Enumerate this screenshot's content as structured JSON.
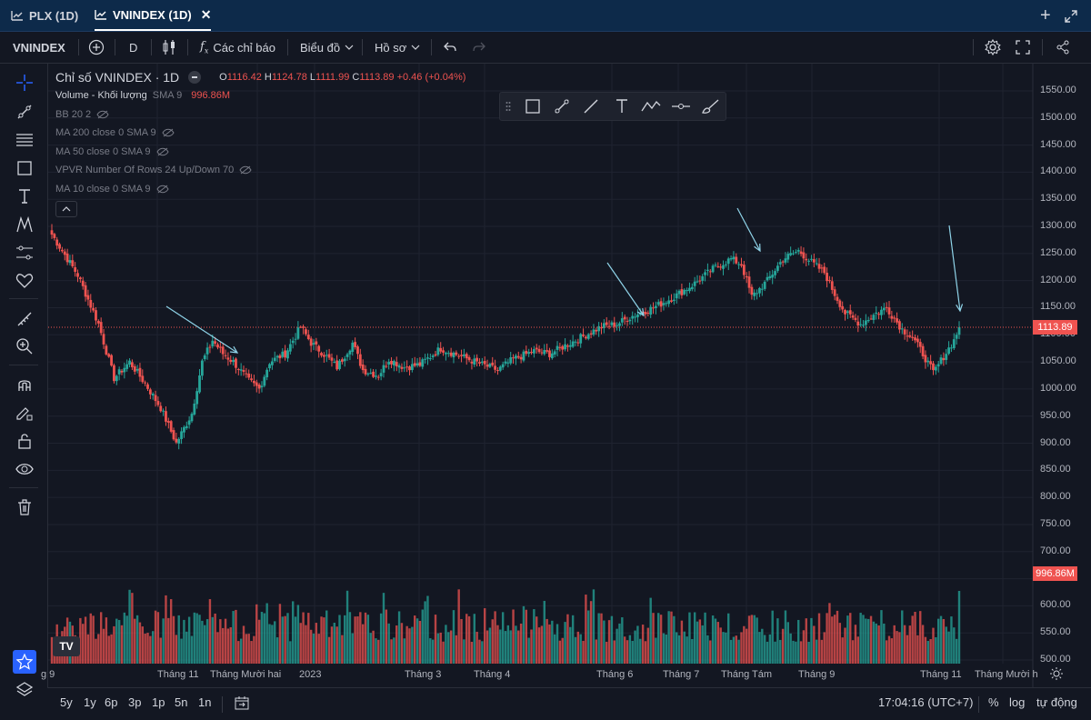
{
  "tabs": [
    {
      "label": "PLX (1D)",
      "active": false
    },
    {
      "label": "VNINDEX (1D)",
      "active": true
    }
  ],
  "toolbar": {
    "symbol": "VNINDEX",
    "interval": "D",
    "indicators_label": "Các chỉ báo",
    "chart_type_label": "Biểu đồ",
    "profile_label": "Hồ sơ"
  },
  "legend": {
    "title": "Chỉ số VNINDEX · 1D",
    "o_label": "O",
    "o": "1116.42",
    "h_label": "H",
    "h": "1124.78",
    "l_label": "L",
    "l": "1111.99",
    "c_label": "C",
    "c": "1113.89",
    "change": "+0.46 (+0.04%)",
    "volume_label": "Volume - Khối lượng",
    "volume_sma": "SMA 9",
    "volume_value": "996.86M",
    "indicators": [
      "BB 20 2",
      "MA 200 close 0 SMA 9",
      "MA 50 close 0 SMA 9",
      "VPVR Number Of Rows 24 Up/Down 70",
      "MA 10 close 0 SMA 9"
    ]
  },
  "price_axis": {
    "ticks": [
      "1550.00",
      "1500.00",
      "1450.00",
      "1400.00",
      "1350.00",
      "1300.00",
      "1250.00",
      "1200.00",
      "1150.00",
      "1100.00",
      "1050.00",
      "1000.00",
      "950.00",
      "900.00",
      "850.00",
      "800.00",
      "750.00",
      "700.00",
      "650.00",
      "600.00",
      "550.00",
      "500.00"
    ],
    "current_price": "1113.89",
    "current_volume": "996.86M"
  },
  "time_axis": {
    "labels": [
      "g 9",
      "Tháng 11",
      "Tháng Mười hai",
      "2023",
      "Tháng 3",
      "Tháng 4",
      "Tháng 6",
      "Tháng 7",
      "Tháng Tám",
      "Tháng 9",
      "Tháng 11",
      "Tháng Mười h"
    ]
  },
  "bottom": {
    "ranges": [
      "5y",
      "1y",
      "6p",
      "3p",
      "1p",
      "5n",
      "1n"
    ],
    "clock": "17:04:16 (UTC+7)",
    "pct": "%",
    "log": "log",
    "auto": "tự động"
  },
  "watermark": "TV",
  "colors": {
    "up": "#26a69a",
    "down": "#ef5350",
    "accent": "#2962ff",
    "bg": "#131722",
    "arrow": "#8fd3e8"
  },
  "chart_data": {
    "type": "candlestick",
    "ylim": [
      500,
      1550
    ],
    "anchors": [
      [
        0,
        1285
      ],
      [
        10,
        1210
      ],
      [
        18,
        1120
      ],
      [
        24,
        1020
      ],
      [
        30,
        1050
      ],
      [
        36,
        1010
      ],
      [
        42,
        965
      ],
      [
        48,
        900
      ],
      [
        54,
        955
      ],
      [
        58,
        1050
      ],
      [
        62,
        1090
      ],
      [
        66,
        1065
      ],
      [
        70,
        1050
      ],
      [
        76,
        1015
      ],
      [
        80,
        1000
      ],
      [
        84,
        1050
      ],
      [
        90,
        1065
      ],
      [
        96,
        1115
      ],
      [
        100,
        1085
      ],
      [
        106,
        1060
      ],
      [
        110,
        1040
      ],
      [
        116,
        1085
      ],
      [
        120,
        1035
      ],
      [
        126,
        1025
      ],
      [
        130,
        1055
      ],
      [
        136,
        1040
      ],
      [
        142,
        1045
      ],
      [
        150,
        1075
      ],
      [
        158,
        1060
      ],
      [
        166,
        1045
      ],
      [
        172,
        1035
      ],
      [
        178,
        1055
      ],
      [
        186,
        1070
      ],
      [
        192,
        1065
      ],
      [
        200,
        1085
      ],
      [
        206,
        1100
      ],
      [
        212,
        1115
      ],
      [
        218,
        1120
      ],
      [
        224,
        1135
      ],
      [
        232,
        1150
      ],
      [
        240,
        1170
      ],
      [
        248,
        1195
      ],
      [
        256,
        1225
      ],
      [
        262,
        1240
      ],
      [
        266,
        1230
      ],
      [
        270,
        1170
      ],
      [
        276,
        1200
      ],
      [
        282,
        1240
      ],
      [
        288,
        1255
      ],
      [
        294,
        1230
      ],
      [
        298,
        1215
      ],
      [
        302,
        1175
      ],
      [
        306,
        1140
      ],
      [
        312,
        1120
      ],
      [
        318,
        1140
      ],
      [
        322,
        1150
      ],
      [
        328,
        1110
      ],
      [
        332,
        1095
      ],
      [
        336,
        1065
      ],
      [
        340,
        1030
      ],
      [
        344,
        1060
      ],
      [
        348,
        1090
      ],
      [
        350,
        1113.89
      ]
    ],
    "volume_range": [
      500,
      750
    ],
    "last_volume": 996.86
  }
}
